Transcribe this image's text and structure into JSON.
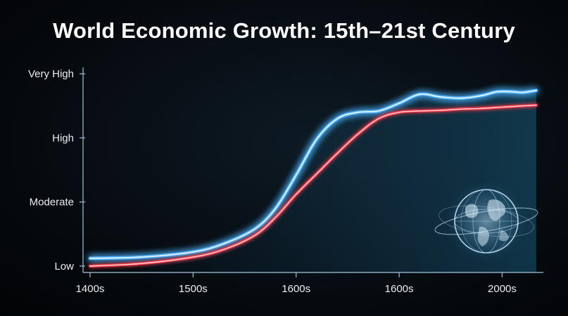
{
  "title": "World Economic Growth: 15th–21st Century",
  "chart_data": {
    "type": "line",
    "title": "World Economic Growth: 15th–21st Century",
    "xlabel": "",
    "ylabel": "",
    "x_ticks": [
      "1400s",
      "1500s",
      "1600s",
      "1600s",
      "2000s"
    ],
    "y_ticks": [
      "Low",
      "Moderate",
      "High",
      "Very High"
    ],
    "y_scale": "ordinal (Low=0, Moderate=1, High=2, Very High=3)",
    "xlim": [
      0,
      4.4
    ],
    "ylim": [
      -0.1,
      3.1
    ],
    "grid": false,
    "colors": {
      "series_1": "#4fb4ff",
      "series_2": "#ff3b4a"
    },
    "series": [
      {
        "x": [
          0,
          0.5,
          1.0,
          1.3,
          1.6,
          1.8,
          2.0,
          2.2,
          2.4,
          2.6,
          2.8,
          3.0,
          3.2,
          3.4,
          3.6,
          3.8,
          3.95,
          4.1,
          4.2,
          4.33
        ],
        "values": [
          0.12,
          0.14,
          0.22,
          0.35,
          0.58,
          0.9,
          1.42,
          1.98,
          2.3,
          2.4,
          2.42,
          2.54,
          2.68,
          2.64,
          2.62,
          2.66,
          2.72,
          2.72,
          2.71,
          2.74
        ]
      },
      {
        "x": [
          0,
          0.5,
          1.0,
          1.3,
          1.6,
          1.8,
          2.0,
          2.2,
          2.4,
          2.6,
          2.8,
          3.0,
          3.2,
          3.4,
          3.6,
          3.8,
          4.0,
          4.2,
          4.33
        ],
        "values": [
          0.0,
          0.04,
          0.14,
          0.26,
          0.48,
          0.76,
          1.12,
          1.44,
          1.76,
          2.06,
          2.3,
          2.4,
          2.42,
          2.43,
          2.45,
          2.46,
          2.48,
          2.5,
          2.51
        ]
      }
    ]
  }
}
